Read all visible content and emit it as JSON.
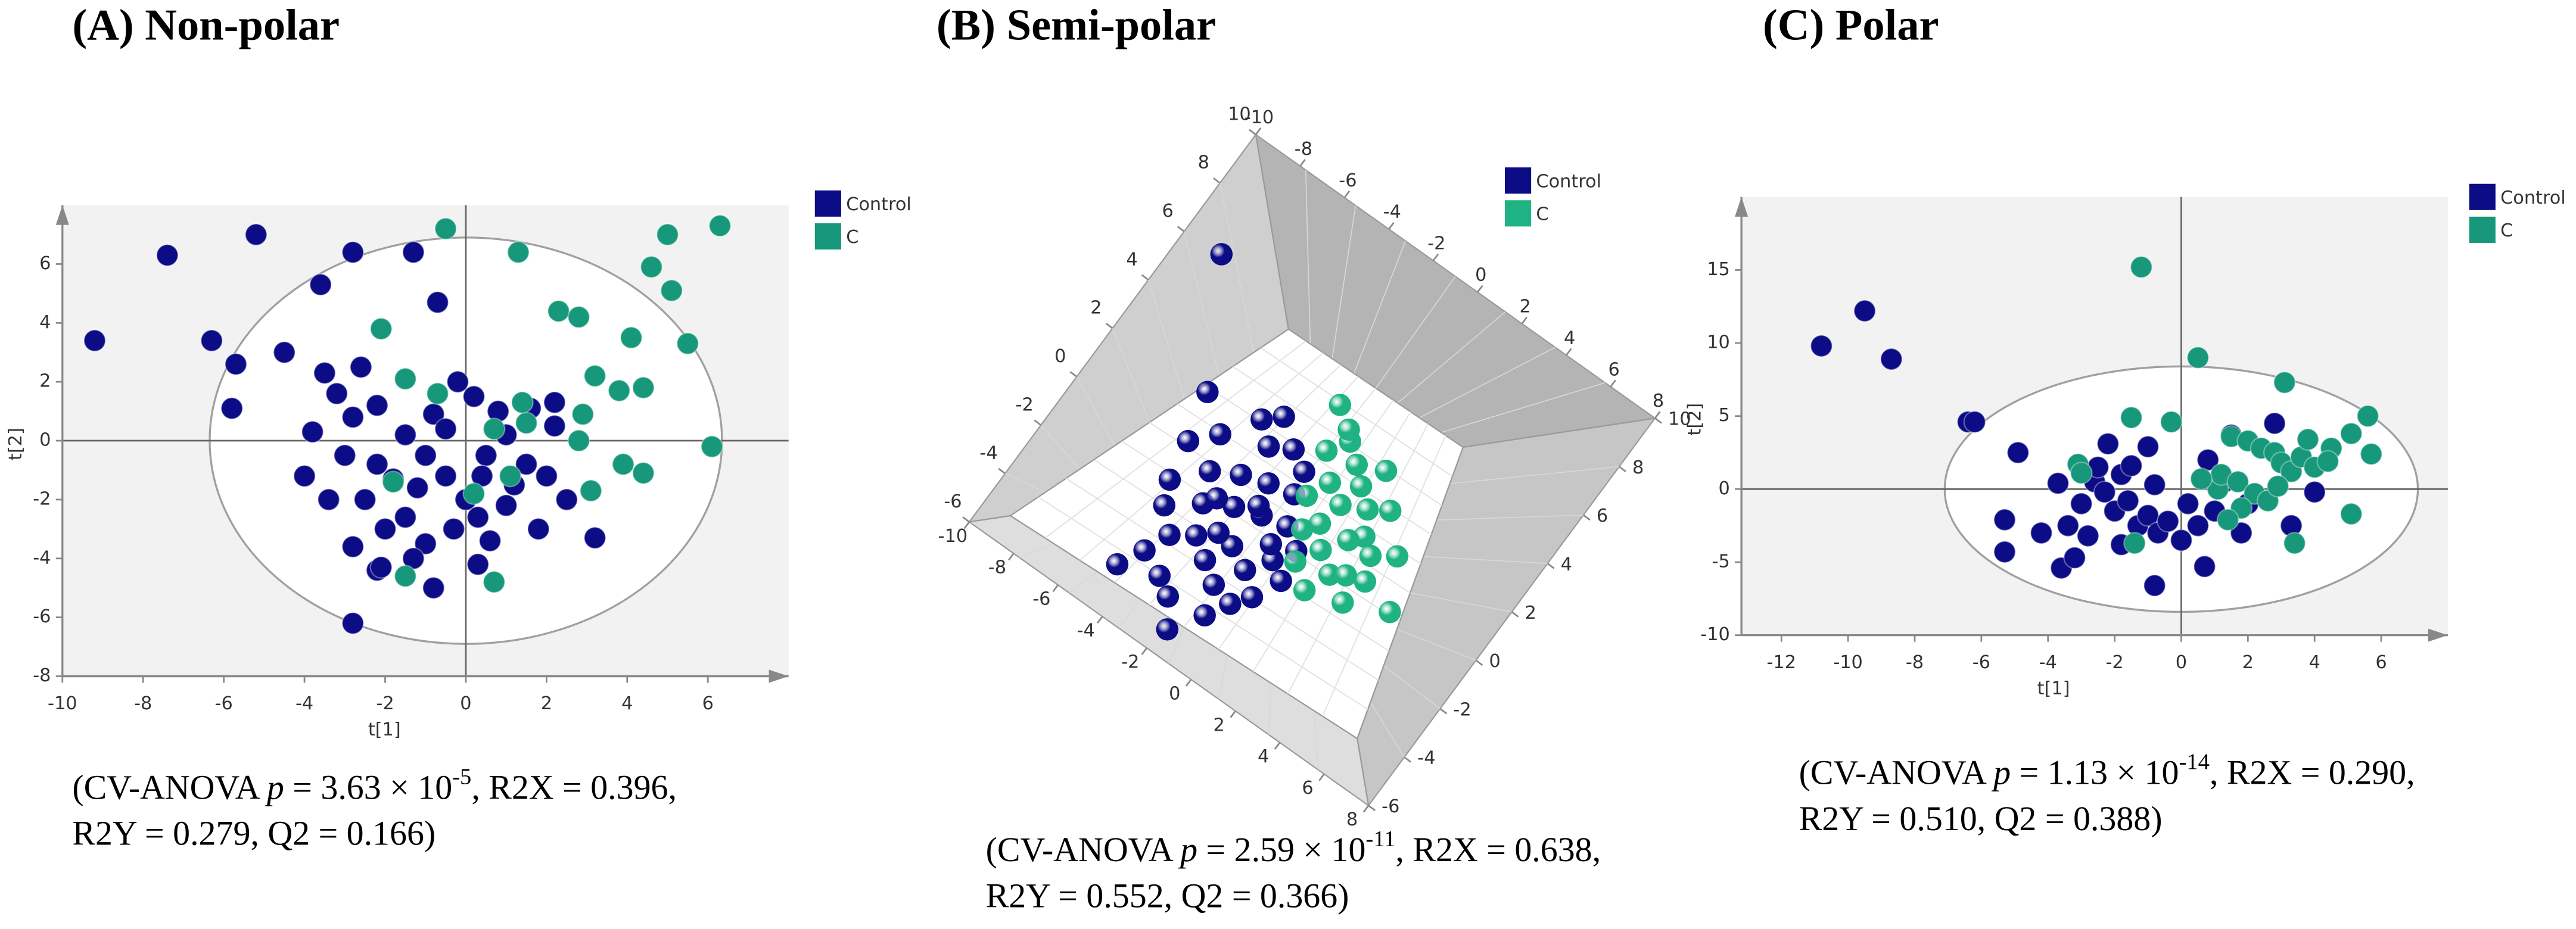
{
  "chart_data": [
    {
      "type": "scatter",
      "title": "(A) Non-polar",
      "xlabel": "t[1]",
      "ylabel": "t[2]",
      "xlim": [
        -10,
        8
      ],
      "ylim": [
        -8,
        8
      ],
      "xticks": [
        -10,
        -8,
        -6,
        -4,
        -2,
        0,
        2,
        4,
        6
      ],
      "yticks": [
        -8,
        -6,
        -4,
        -2,
        0,
        2,
        4,
        6
      ],
      "confidence_ellipse": {
        "center": [
          0,
          0
        ],
        "rx": 6.35,
        "ry": 6.9
      },
      "series": [
        {
          "name": "Control",
          "color": "#0c0c86",
          "x": [
            -9.2,
            -7.4,
            -5.2,
            -2.8,
            -1.3,
            -0.7,
            -3.6,
            -6.3,
            -5.7,
            -5.8,
            -4.5,
            -4.0,
            -2.8,
            -0.8,
            -2.2,
            3.2,
            2.2,
            -3.5,
            -3.2,
            -2.6,
            -2.2,
            -1.5,
            -1.0,
            -0.5,
            0,
            0.5,
            1,
            1.5,
            2,
            2.5,
            -2.5,
            -2,
            -1.5,
            -1,
            -0.3,
            0.3,
            1,
            1.8,
            -3,
            -3.4,
            -2.8,
            -2.1,
            -1.3,
            0.3,
            0.6,
            -0.2,
            0.2,
            -0.8,
            0.8,
            1.6,
            2.2,
            -1.8,
            -0.5,
            0.4,
            -1.2,
            1.2,
            -2.2,
            -3.8,
            -2.8
          ],
          "y": [
            3.4,
            6.3,
            7.0,
            6.4,
            6.4,
            4.7,
            5.3,
            3.4,
            2.6,
            1.1,
            3.0,
            -1.2,
            -6.2,
            -5.0,
            -4.4,
            -3.3,
            1.3,
            2.3,
            1.6,
            2.5,
            1.2,
            0.2,
            -0.5,
            -1.2,
            -2,
            -0.5,
            0.2,
            -0.8,
            -1.2,
            -2,
            -2,
            -3,
            -2.6,
            -3.5,
            -3,
            -2.6,
            -2.2,
            -3,
            -0.5,
            -2,
            -3.6,
            -4.3,
            -4,
            -4.2,
            -3.4,
            2,
            1.5,
            0.9,
            1,
            1.1,
            0.5,
            -1.3,
            0.4,
            -1.2,
            -1.6,
            -1.5,
            -0.8,
            0.3,
            0.8
          ]
        },
        {
          "name": "C",
          "color": "#17987a",
          "x": [
            -0.5,
            1.3,
            6.3,
            5.0,
            5.1,
            4.6,
            2.3,
            2.8,
            4.1,
            5.5,
            6.1,
            4.4,
            3.9,
            3.1,
            -2.1,
            -1.5,
            0.7,
            -1.8,
            0.2,
            3.2,
            3.8,
            4.4,
            2.8,
            2.9,
            1.5,
            1.4,
            0.7,
            1.1,
            -0.7,
            -1.5
          ],
          "y": [
            7.2,
            6.4,
            7.3,
            7.0,
            5.1,
            5.9,
            4.4,
            4.2,
            3.5,
            3.3,
            -0.2,
            -1.1,
            -0.8,
            -1.7,
            3.8,
            -4.6,
            -4.8,
            -1.4,
            -1.8,
            2.2,
            1.7,
            1.8,
            0,
            0.9,
            0.6,
            1.3,
            0.4,
            -1.2,
            1.6,
            2.1
          ]
        }
      ],
      "annotation_lines": [
        [
          {
            "text": "(CV-ANOVA "
          },
          {
            "text": "p",
            "italic": true
          },
          {
            "text": " = 3.63 × 10"
          },
          {
            "text": "-5",
            "superscript": true
          },
          {
            "text": ", R2X = 0.396,"
          }
        ],
        [
          {
            "text": "R2Y = 0.279, Q2 = 0.166)"
          }
        ]
      ]
    },
    {
      "type": "scatter3d",
      "title": "(B) Semi-polar",
      "xlim": [
        -10,
        8
      ],
      "ylim": [
        -6,
        10
      ],
      "xticks": [
        -10,
        -8,
        -6,
        -4,
        -2,
        0,
        2,
        4,
        6,
        8
      ],
      "yticks": [
        -6,
        -4,
        -2,
        0,
        2,
        4,
        6,
        8,
        10
      ],
      "series": [
        {
          "name": "Control",
          "color": "#0c0c86",
          "x": [
            -8.4,
            -5.8,
            -3,
            -4.7,
            -1.8,
            -1.7,
            -4,
            -3.5,
            -3,
            -2.5,
            -2,
            -1.5,
            -1,
            -0.5,
            -3.8,
            -3,
            -2.2,
            -1.4,
            -0.8,
            -0.2,
            0.3,
            -2.8,
            -2,
            -4.5,
            -5,
            -4.2,
            -3.2,
            -2.5,
            -1,
            -0.5,
            0,
            -1.2,
            -3.6,
            -2.4,
            -1.8,
            -0.6,
            0.5,
            -5.3,
            -4.6,
            -3.2
          ],
          "y": [
            6.1,
            2.1,
            2.9,
            -4.3,
            -5.1,
            -1.6,
            0,
            -1,
            0.5,
            -0.5,
            0.8,
            -0.2,
            1,
            0,
            -2.5,
            -2,
            -2.5,
            -3,
            -2,
            -1.2,
            -0.5,
            1.8,
            2.2,
            1.2,
            -1,
            -3.4,
            -3.8,
            -4.2,
            -4,
            -3.2,
            -2.6,
            1.8,
            2.4,
            -1.5,
            0,
            -0.8,
            -1.6,
            0.4,
            -1.8,
            -0.6
          ]
        },
        {
          "name": "C",
          "color": "#1fb383",
          "x": [
            -1.6,
            4.4,
            0.4,
            -0.5,
            0.2,
            0.8,
            1.5,
            2,
            2.6,
            3,
            1,
            1.8,
            0.5,
            -0.2,
            1.2,
            -1,
            0.6,
            2.2,
            3.4,
            -0.6,
            1.6,
            2.8,
            0,
            1.4,
            -0.8,
            2.3
          ],
          "y": [
            4.3,
            -0.35,
            0.7,
            3.5,
            3,
            2.5,
            2,
            1.2,
            0.8,
            0,
            0,
            -0.5,
            -0.8,
            2,
            3.4,
            2.8,
            1.6,
            2.4,
            1.3,
            1.2,
            0.8,
            -1,
            0.2,
            -1.4,
            3.8,
            -0.2
          ]
        }
      ],
      "annotation_lines": [
        [
          {
            "text": "(CV-ANOVA "
          },
          {
            "text": "p",
            "italic": true
          },
          {
            "text": " = 2.59 × 10"
          },
          {
            "text": "-11",
            "superscript": true
          },
          {
            "text": ", R2X = 0.638,"
          }
        ],
        [
          {
            "text": "R2Y = 0.552, Q2 = 0.366)"
          }
        ]
      ]
    },
    {
      "type": "scatter",
      "title": "(C) Polar",
      "xlabel": "t[1]",
      "ylabel": "t[2]",
      "xlim": [
        -13.2,
        8
      ],
      "ylim": [
        -10,
        20
      ],
      "xticks": [
        -12,
        -10,
        -8,
        -6,
        -4,
        -2,
        0,
        2,
        4,
        6
      ],
      "yticks": [
        -10,
        -5,
        0,
        5,
        10,
        15
      ],
      "confidence_ellipse": {
        "center": [
          0,
          0
        ],
        "rx": 7.1,
        "ry": 8.4
      },
      "series": [
        {
          "name": "Control",
          "color": "#0c0c86",
          "x": [
            -10.8,
            -9.5,
            -8.7,
            -6.4,
            -6.2,
            -4.9,
            -5.3,
            -5.3,
            -4.2,
            -3.6,
            -3.2,
            -3.7,
            -2.2,
            -1.0,
            0.7,
            -0.8,
            1.5,
            2.8,
            3.3,
            4.0,
            1.8,
            -3,
            -2.6,
            -2.3,
            -2,
            -1.6,
            -1.3,
            -1,
            -0.7,
            -0.4,
            0,
            0.2,
            0.5,
            1,
            1.3,
            -1.8,
            -0.8,
            -2.8,
            -1.8,
            -3.4,
            0.8,
            2,
            -1.5,
            -2.5
          ],
          "y": [
            9.8,
            12.2,
            8.9,
            4.6,
            4.6,
            2.5,
            -2.1,
            -4.3,
            -3.0,
            -5.4,
            -4.7,
            0.4,
            3.1,
            2.9,
            -5.3,
            -6.6,
            3.7,
            4.5,
            -2.5,
            -0.2,
            -3.0,
            -1,
            0.5,
            -0.2,
            -1.5,
            -0.8,
            -2.5,
            -1.8,
            -3,
            -2.2,
            -3.5,
            -1,
            -2.5,
            -1.5,
            0.5,
            1,
            0.3,
            -3.2,
            -3.8,
            -2.5,
            2,
            -1,
            1.6,
            1.5
          ]
        },
        {
          "name": "C",
          "color": "#17987a",
          "x": [
            -1.2,
            0.5,
            3.1,
            5.6,
            5.1,
            5.7,
            4.5,
            5.1,
            3.4,
            -1.4,
            -1.5,
            -0.3,
            -3.1,
            -3.0,
            1.1,
            1.5,
            2,
            2.4,
            2.8,
            3,
            3.3,
            3.6,
            4,
            1.2,
            1.7,
            2.2,
            2.6,
            1.8,
            3.8,
            4.4,
            0.6,
            1.4,
            2.9
          ],
          "y": [
            15.2,
            9.0,
            7.3,
            5.0,
            3.8,
            2.4,
            2.8,
            -1.7,
            -3.7,
            -3.7,
            4.9,
            4.6,
            1.7,
            1.1,
            0,
            3.6,
            3.3,
            2.8,
            2.5,
            1.8,
            1.2,
            2.2,
            1.5,
            1,
            0.5,
            -0.3,
            -0.8,
            -1.3,
            3.4,
            1.9,
            0.7,
            -2.1,
            0.2
          ]
        }
      ],
      "annotation_lines": [
        [
          {
            "text": "(CV-ANOVA "
          },
          {
            "text": "p",
            "italic": true
          },
          {
            "text": " = 1.13 × 10"
          },
          {
            "text": "-14",
            "superscript": true
          },
          {
            "text": ", R2X = 0.290,"
          }
        ],
        [
          {
            "text": "R2Y = 0.510, Q2 = 0.388)"
          }
        ]
      ]
    }
  ]
}
